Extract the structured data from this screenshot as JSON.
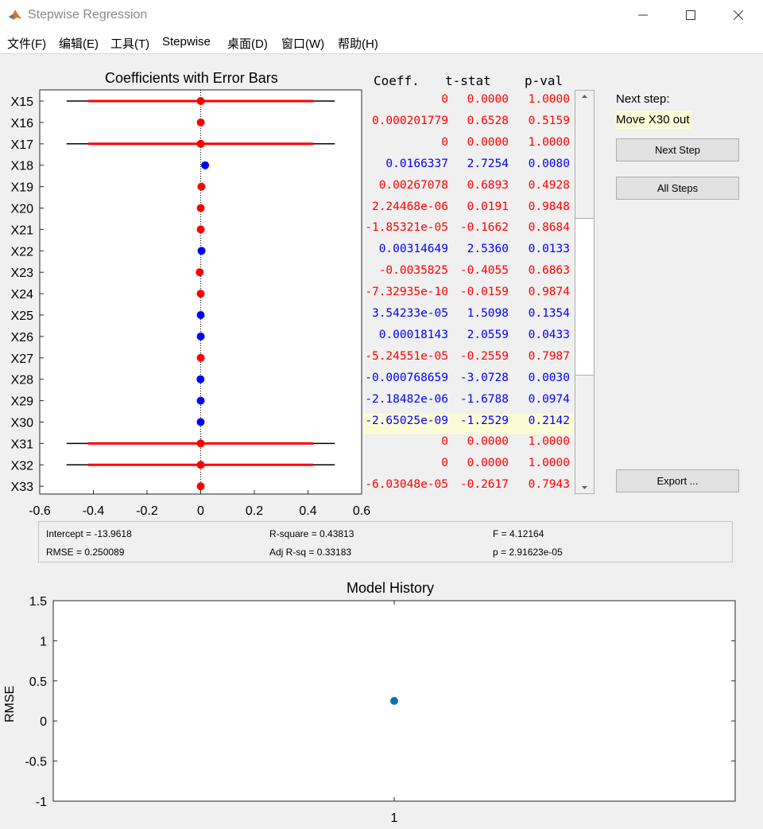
{
  "window": {
    "title": "Stepwise Regression"
  },
  "menu": [
    "文件(F)",
    "编辑(E)",
    "工具(T)",
    "Stepwise",
    "桌面(D)",
    "窗口(W)",
    "帮助(H)"
  ],
  "colors": {
    "in_model": "#0000ff",
    "out_model": "#ff0000",
    "history_point": "#0072bd",
    "highlight": "#fbfbd6"
  },
  "coef_plot": {
    "title": "Coefficients with Error Bars",
    "xticks": [
      "-0.6",
      "-0.4",
      "-0.2",
      "0",
      "0.2",
      "0.4",
      "0.6"
    ],
    "xlim": [
      -0.6,
      0.6
    ]
  },
  "table": {
    "headers": [
      "Coeff.",
      "t-stat",
      "p-val"
    ],
    "rows": [
      {
        "label": "X15",
        "coeff": "0",
        "t": "0.0000",
        "p": "1.0000",
        "in": false,
        "value": 0,
        "ci90": 0.42,
        "ci95": 0.5
      },
      {
        "label": "X16",
        "coeff": "0.000201779",
        "t": "0.6528",
        "p": "0.5159",
        "in": false,
        "value": 0.0002,
        "ci90": 0,
        "ci95": 0
      },
      {
        "label": "X17",
        "coeff": "0",
        "t": "0.0000",
        "p": "1.0000",
        "in": false,
        "value": 0,
        "ci90": 0.42,
        "ci95": 0.5
      },
      {
        "label": "X18",
        "coeff": "0.0166337",
        "t": "2.7254",
        "p": "0.0080",
        "in": true,
        "value": 0.0166,
        "ci90": 0,
        "ci95": 0
      },
      {
        "label": "X19",
        "coeff": "0.00267078",
        "t": "0.6893",
        "p": "0.4928",
        "in": false,
        "value": 0.0027,
        "ci90": 0,
        "ci95": 0
      },
      {
        "label": "X20",
        "coeff": "2.24468e-06",
        "t": "0.0191",
        "p": "0.9848",
        "in": false,
        "value": 0,
        "ci90": 0,
        "ci95": 0
      },
      {
        "label": "X21",
        "coeff": "-1.85321e-05",
        "t": "-0.1662",
        "p": "0.8684",
        "in": false,
        "value": 0,
        "ci90": 0,
        "ci95": 0
      },
      {
        "label": "X22",
        "coeff": "0.00314649",
        "t": "2.5360",
        "p": "0.0133",
        "in": true,
        "value": 0.0031,
        "ci90": 0,
        "ci95": 0
      },
      {
        "label": "X23",
        "coeff": "-0.0035825",
        "t": "-0.4055",
        "p": "0.6863",
        "in": false,
        "value": -0.0036,
        "ci90": 0.008,
        "ci95": 0.01
      },
      {
        "label": "X24",
        "coeff": "-7.32935e-10",
        "t": "-0.0159",
        "p": "0.9874",
        "in": false,
        "value": 0,
        "ci90": 0,
        "ci95": 0
      },
      {
        "label": "X25",
        "coeff": "3.54233e-05",
        "t": "1.5098",
        "p": "0.1354",
        "in": true,
        "value": 0,
        "ci90": 0,
        "ci95": 0
      },
      {
        "label": "X26",
        "coeff": "0.00018143",
        "t": "2.0559",
        "p": "0.0433",
        "in": true,
        "value": 0.0002,
        "ci90": 0,
        "ci95": 0
      },
      {
        "label": "X27",
        "coeff": "-5.24551e-05",
        "t": "-0.2559",
        "p": "0.7987",
        "in": false,
        "value": 0,
        "ci90": 0,
        "ci95": 0
      },
      {
        "label": "X28",
        "coeff": "-0.000768659",
        "t": "-3.0728",
        "p": "0.0030",
        "in": true,
        "value": -0.0008,
        "ci90": 0,
        "ci95": 0
      },
      {
        "label": "X29",
        "coeff": "-2.18482e-06",
        "t": "-1.6788",
        "p": "0.0974",
        "in": true,
        "value": 0,
        "ci90": 0,
        "ci95": 0
      },
      {
        "label": "X30",
        "coeff": "-2.65025e-09",
        "t": "-1.2529",
        "p": "0.2142",
        "in": true,
        "value": 0,
        "ci90": 0,
        "ci95": 0,
        "highlight": true
      },
      {
        "label": "X31",
        "coeff": "0",
        "t": "0.0000",
        "p": "1.0000",
        "in": false,
        "value": 0,
        "ci90": 0.42,
        "ci95": 0.5
      },
      {
        "label": "X32",
        "coeff": "0",
        "t": "0.0000",
        "p": "1.0000",
        "in": false,
        "value": 0,
        "ci90": 0.42,
        "ci95": 0.5
      },
      {
        "label": "X33",
        "coeff": "-6.03048e-05",
        "t": "-0.2617",
        "p": "0.7943",
        "in": false,
        "value": 0,
        "ci90": 0,
        "ci95": 0
      }
    ]
  },
  "side": {
    "next_step_label": "Next step:",
    "next_step_value": "Move X30 out",
    "next_step_button": "Next Step",
    "all_steps_button": "All Steps",
    "export_button": "Export ..."
  },
  "stats": {
    "intercept": "Intercept = -13.9618",
    "rsquare": "R-square = 0.43813",
    "f": "F = 4.12164",
    "rmse": "RMSE = 0.250089",
    "adjrsq": "Adj R-sq = 0.33183",
    "p": "p = 2.91623e-05"
  },
  "history": {
    "title": "Model History",
    "ylabel": "RMSE",
    "yticks": [
      "1.5",
      "1",
      "0.5",
      "0",
      "-0.5",
      "-1"
    ],
    "xticks": [
      "1"
    ],
    "ylim": [
      -1,
      1.5
    ]
  },
  "chart_data": [
    {
      "type": "scatter",
      "title": "Coefficients with Error Bars",
      "categories": [
        "X15",
        "X16",
        "X17",
        "X18",
        "X19",
        "X20",
        "X21",
        "X22",
        "X23",
        "X24",
        "X25",
        "X26",
        "X27",
        "X28",
        "X29",
        "X30",
        "X31",
        "X32",
        "X33"
      ],
      "values": [
        0,
        0.0002,
        0,
        0.0166,
        0.0027,
        0,
        0,
        0.0031,
        -0.0036,
        0,
        0,
        0.0002,
        0,
        -0.0008,
        0,
        0,
        0,
        0,
        0
      ],
      "xlim": [
        -0.6,
        0.6
      ]
    },
    {
      "type": "scatter",
      "title": "Model History",
      "ylabel": "RMSE",
      "x": [
        1
      ],
      "y": [
        0.250089
      ],
      "ylim": [
        -1,
        1.5
      ]
    }
  ]
}
